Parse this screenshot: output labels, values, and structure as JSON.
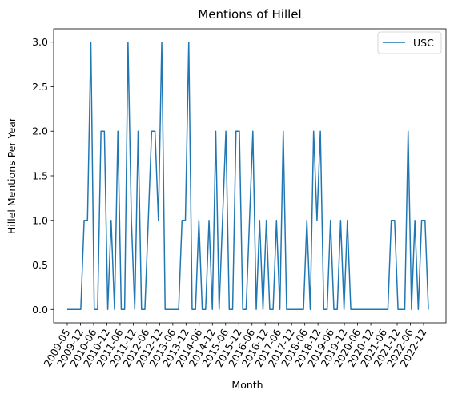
{
  "chart_data": {
    "type": "line",
    "title": "Mentions of Hillel",
    "xlabel": "Month",
    "ylabel": "Hillel Mentions Per Year",
    "ylim": [
      -0.15,
      3.15
    ],
    "yticks": [
      "0.0",
      "0.5",
      "1.0",
      "1.5",
      "2.0",
      "2.5",
      "3.0"
    ],
    "xticks": [
      "2009-05",
      "2009-12",
      "2010-06",
      "2010-12",
      "2011-06",
      "2011-12",
      "2012-06",
      "2012-12",
      "2013-06",
      "2013-12",
      "2014-06",
      "2014-12",
      "2015-06",
      "2015-12",
      "2016-06",
      "2016-12",
      "2017-06",
      "2017-12",
      "2018-06",
      "2018-12",
      "2019-06",
      "2019-12",
      "2020-06",
      "2020-12",
      "2021-06",
      "2021-12",
      "2022-06",
      "2022-12"
    ],
    "legend_position": "top-right",
    "color": "#1f77b4",
    "series": [
      {
        "name": "USC",
        "values": [
          0,
          0,
          0,
          0,
          0,
          1,
          1,
          3,
          0,
          0,
          2,
          2,
          0,
          1,
          0,
          2,
          0,
          0,
          3,
          1,
          0,
          2,
          0,
          0,
          1,
          2,
          2,
          1,
          3,
          0,
          0,
          0,
          0,
          0,
          1,
          1,
          3,
          0,
          0,
          1,
          0,
          0,
          1,
          0,
          2,
          0,
          1,
          2,
          0,
          0,
          2,
          2,
          0,
          0,
          1,
          2,
          0,
          1,
          0,
          1,
          0,
          0,
          1,
          0,
          2,
          0,
          0,
          0,
          0,
          0,
          0,
          1,
          0,
          2,
          1,
          2,
          0,
          0,
          1,
          0,
          0,
          1,
          0,
          1,
          0,
          0,
          0,
          0,
          0,
          0,
          0,
          0,
          0,
          0,
          0,
          0,
          1,
          1,
          0,
          0,
          0,
          2,
          0,
          1,
          0,
          1,
          1,
          0
        ]
      }
    ]
  }
}
